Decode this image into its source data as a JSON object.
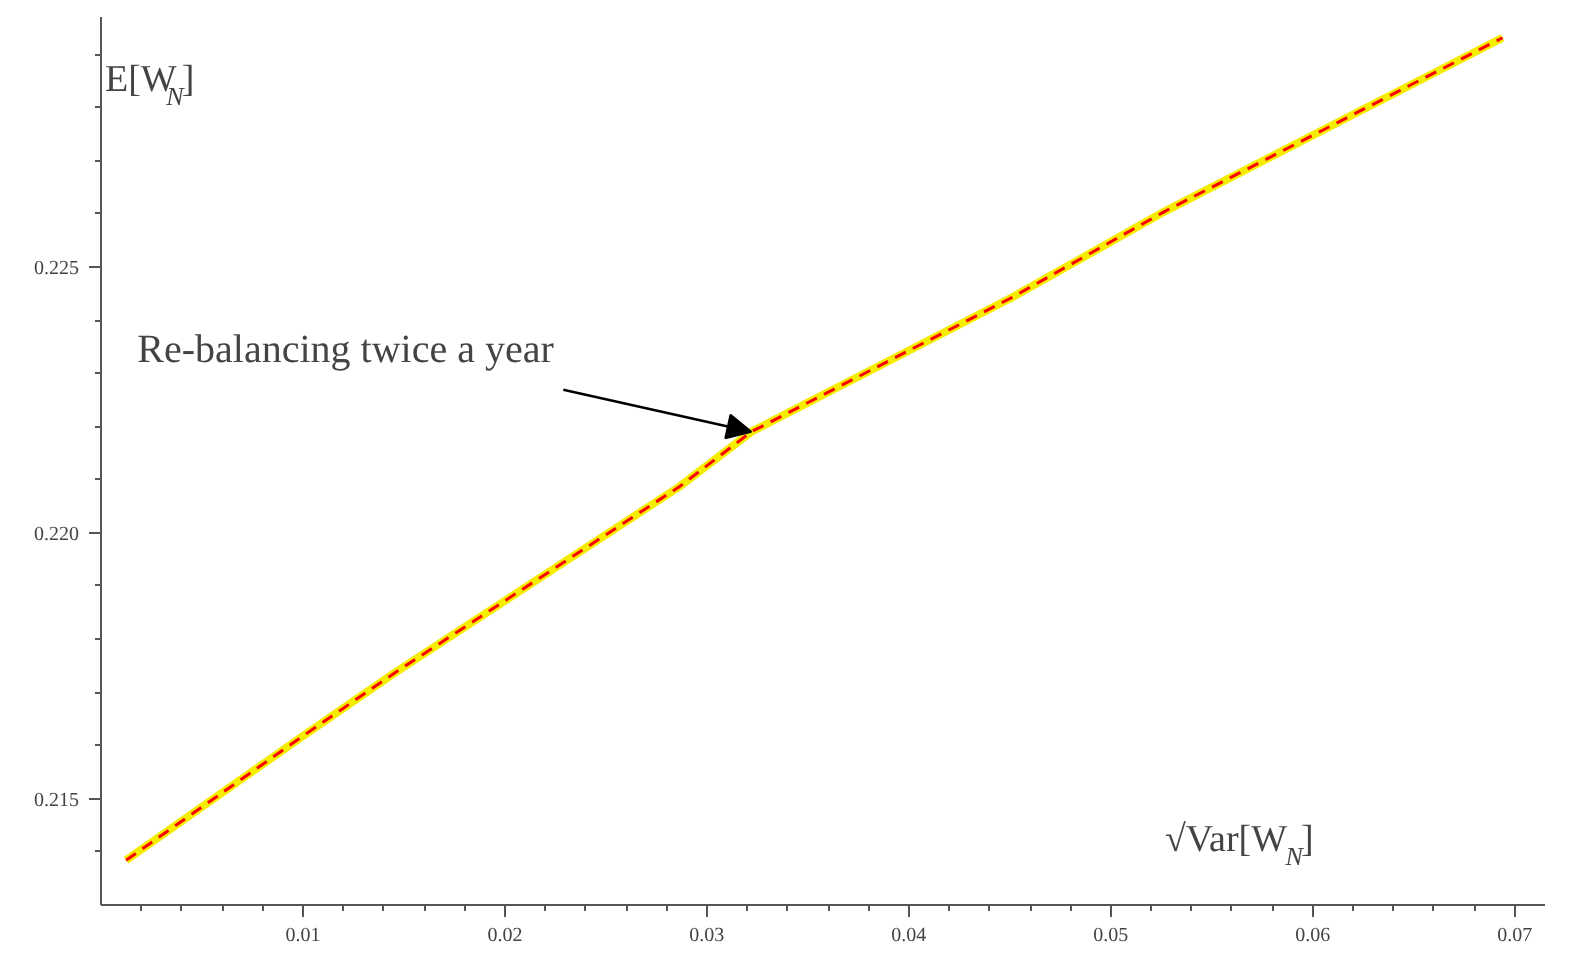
{
  "chart_data": {
    "type": "line",
    "xlabel": "√Var[W$_{N}$]",
    "ylabel": "E[W$_{N}$]",
    "x": [
      0.00124,
      0.00993,
      0.01452,
      0.02865,
      0.0322,
      0.04508,
      0.0527,
      0.0694
    ],
    "series": [
      {
        "color": "#f5ec00",
        "line_style": "solid",
        "values": [
          0.21384,
          0.21616,
          0.21736,
          0.22087,
          0.2219,
          0.22442,
          0.22605,
          0.22931
        ]
      },
      {
        "color": "#ff0000",
        "line_style": "dashed",
        "values": [
          0.21384,
          0.21616,
          0.21736,
          0.22087,
          0.2219,
          0.22442,
          0.22605,
          0.22931
        ]
      }
    ],
    "annotations": [
      {
        "text": "Re-balancing twice a year",
        "x": 0.0322,
        "y": 0.2219
      }
    ],
    "xlim": [
      0,
      0.0715
    ],
    "ylim": [
      0.213,
      0.2297
    ],
    "xticks": [
      {
        "value": 0.002,
        "label": null
      },
      {
        "value": 0.004,
        "label": null
      },
      {
        "value": 0.006,
        "label": null
      },
      {
        "value": 0.008,
        "label": null
      },
      0.01,
      {
        "value": 0.012,
        "label": null
      },
      {
        "value": 0.014,
        "label": null
      },
      {
        "value": 0.016,
        "label": null
      },
      {
        "value": 0.018,
        "label": null
      },
      0.02,
      {
        "value": 0.022,
        "label": null
      },
      {
        "value": 0.024,
        "label": null
      },
      {
        "value": 0.026,
        "label": null
      },
      {
        "value": 0.028,
        "label": null
      },
      0.03,
      {
        "value": 0.032,
        "label": null
      },
      {
        "value": 0.034,
        "label": null
      },
      {
        "value": 0.036,
        "label": null
      },
      {
        "value": 0.038,
        "label": null
      },
      0.04,
      {
        "value": 0.042,
        "label": null
      },
      {
        "value": 0.044,
        "label": null
      },
      {
        "value": 0.046,
        "label": null
      },
      {
        "value": 0.048,
        "label": null
      },
      0.05,
      {
        "value": 0.052,
        "label": null
      },
      {
        "value": 0.054,
        "label": null
      },
      {
        "value": 0.056,
        "label": null
      },
      {
        "value": 0.058,
        "label": null
      },
      0.06,
      {
        "value": 0.062,
        "label": null
      },
      {
        "value": 0.064,
        "label": null
      },
      {
        "value": 0.066,
        "label": null
      },
      {
        "value": 0.068,
        "label": null
      },
      0.07
    ],
    "yticks": [
      {
        "value": 0.214,
        "label": null
      },
      0.215,
      {
        "value": 0.216,
        "label": null
      },
      {
        "value": 0.217,
        "label": null
      },
      {
        "value": 0.218,
        "label": null
      },
      {
        "value": 0.219,
        "label": null
      },
      {
        "value": 0.22,
        "label": "0.220"
      },
      {
        "value": 0.221,
        "label": null
      },
      {
        "value": 0.222,
        "label": null
      },
      {
        "value": 0.223,
        "label": null
      },
      {
        "value": 0.224,
        "label": null
      },
      0.225,
      {
        "value": 0.226,
        "label": null
      },
      {
        "value": 0.227,
        "label": null
      },
      {
        "value": 0.228,
        "label": null
      },
      {
        "value": 0.229,
        "label": null
      }
    ],
    "grid": false,
    "marker": "none"
  }
}
